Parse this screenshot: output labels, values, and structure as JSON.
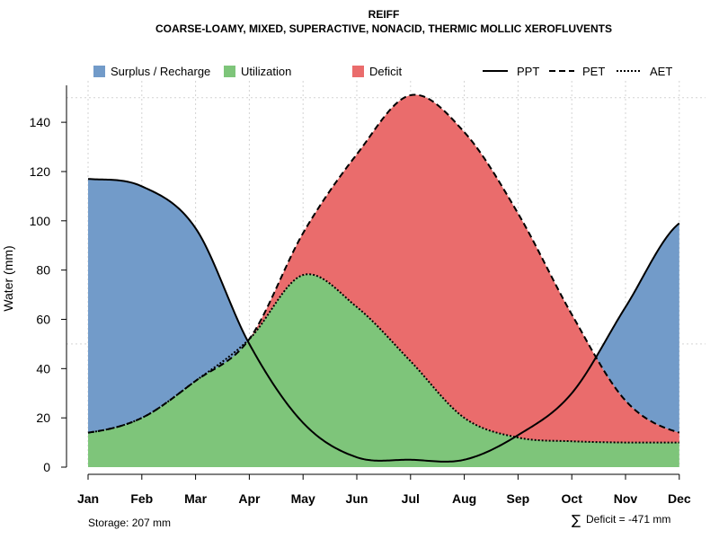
{
  "chart_data": {
    "type": "area",
    "title": "REIFF",
    "subtitle": "COARSE-LOAMY, MIXED, SUPERACTIVE, NONACID, THERMIC MOLLIC XEROFLUVENTS",
    "xlabel": "",
    "ylabel": "Water (mm)",
    "ylim": [
      0,
      155
    ],
    "yticks": [
      "0",
      "20",
      "40",
      "60",
      "80",
      "100",
      "120",
      "140"
    ],
    "yticks_values": [
      0,
      20,
      40,
      60,
      80,
      100,
      120,
      140
    ],
    "categories": [
      "Jan",
      "Feb",
      "Mar",
      "Apr",
      "May",
      "Jun",
      "Jul",
      "Aug",
      "Sep",
      "Oct",
      "Nov",
      "Dec"
    ],
    "grid": true,
    "series": [
      {
        "name": "PPT",
        "style": "solid",
        "values": [
          117,
          114,
          97,
          50,
          18,
          4,
          3,
          3,
          13,
          30,
          65,
          99
        ]
      },
      {
        "name": "PET",
        "style": "dashed",
        "values": [
          14,
          20,
          35,
          52,
          95,
          127,
          151,
          136,
          103,
          62,
          27,
          14
        ]
      },
      {
        "name": "AET",
        "style": "dotted",
        "values": [
          14,
          20,
          35,
          52,
          78,
          65,
          43,
          20,
          12,
          10.5,
          10,
          10
        ]
      }
    ],
    "legend": [
      {
        "label": "Surplus / Recharge",
        "kind": "fill",
        "color": "#729BC9"
      },
      {
        "label": "Utilization",
        "kind": "fill",
        "color": "#7EC57A"
      },
      {
        "label": "Deficit",
        "kind": "fill",
        "color": "#EA6C6C"
      },
      {
        "label": "PPT",
        "kind": "line",
        "style": "solid"
      },
      {
        "label": "PET",
        "kind": "line",
        "style": "dashed"
      },
      {
        "label": "AET",
        "kind": "line",
        "style": "dotted"
      }
    ],
    "legend_placement": "top",
    "annotations": {
      "storage": "Storage: 207 mm",
      "deficit_symbol": "∑",
      "deficit": "Deficit = -471 mm"
    },
    "colors": {
      "surplus": "#729BC9",
      "utilization": "#7EC57A",
      "deficit": "#EA6C6C",
      "line": "#000000"
    }
  }
}
